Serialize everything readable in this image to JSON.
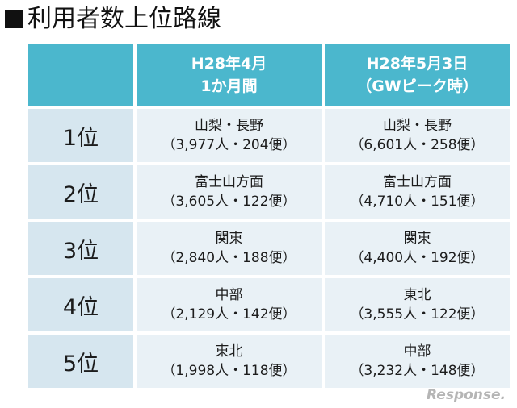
{
  "title": "利用者数上位路線",
  "header": {
    "col1_line1": "H28年4月",
    "col1_line2": "1か月間",
    "col2_line1": "H28年5月3日",
    "col2_line2": "（GWピーク時）"
  },
  "rows": [
    {
      "rank": "1位",
      "a_route": "山梨・長野",
      "a_stats": "（3,977人・204便）",
      "b_route": "山梨・長野",
      "b_stats": "（6,601人・258便）"
    },
    {
      "rank": "2位",
      "a_route": "富士山方面",
      "a_stats": "（3,605人・122便）",
      "b_route": "富士山方面",
      "b_stats": "（4,710人・151便）"
    },
    {
      "rank": "3位",
      "a_route": "関東",
      "a_stats": "（2,840人・188便）",
      "b_route": "関東",
      "b_stats": "（4,400人・192便）"
    },
    {
      "rank": "4位",
      "a_route": "中部",
      "a_stats": "（2,129人・142便）",
      "b_route": "東北",
      "b_stats": "（3,555人・122便）"
    },
    {
      "rank": "5位",
      "a_route": "東北",
      "a_stats": "（1,998人・118便）",
      "b_route": "中部",
      "b_stats": "（3,232人・148便）"
    }
  ],
  "watermark": "Response.",
  "colors": {
    "header_bg": "#4bb7cd",
    "rank_bg": "#d6e6ef",
    "cell_bg": "#e9f1f6"
  }
}
